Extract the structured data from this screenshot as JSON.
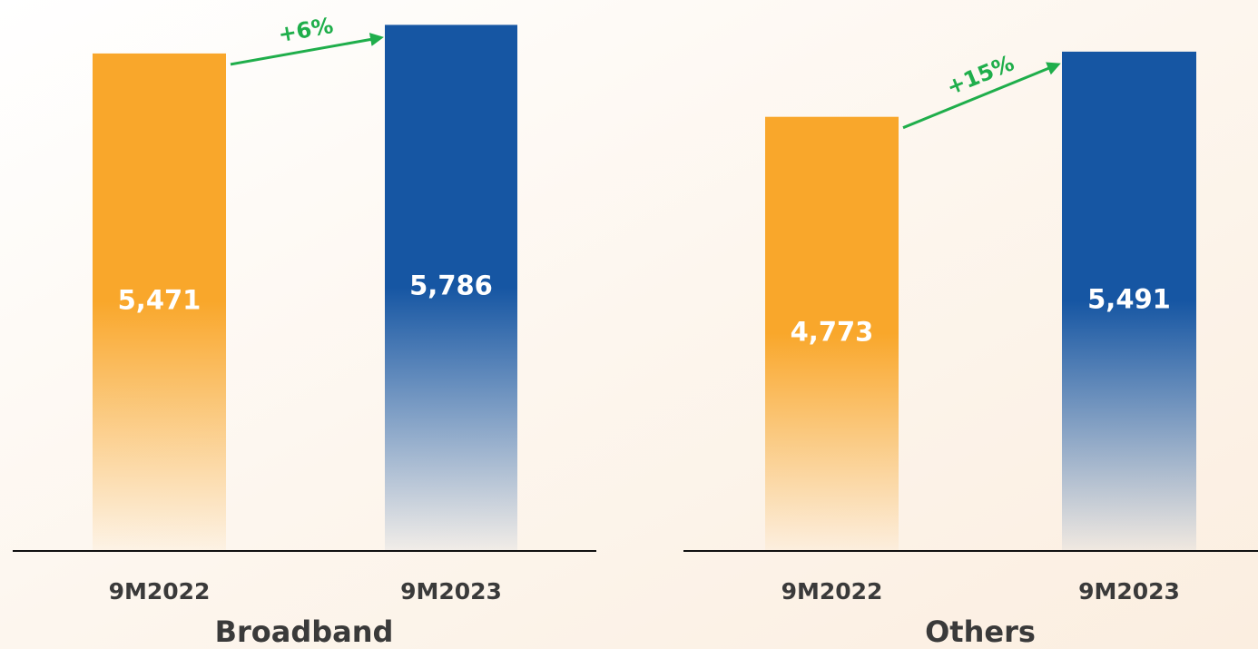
{
  "chart_data": [
    {
      "type": "bar",
      "title": "Broadband",
      "categories": [
        "9M2022",
        "9M2023"
      ],
      "values": [
        5471,
        5786
      ],
      "value_labels": [
        "5,471",
        "5,786"
      ],
      "colors": [
        "#F9A72B",
        "#1656A3"
      ],
      "annotation": "+6%"
    },
    {
      "type": "bar",
      "title": "Others",
      "categories": [
        "9M2022",
        "9M2023"
      ],
      "values": [
        4773,
        5491
      ],
      "value_labels": [
        "4,773",
        "5,491"
      ],
      "colors": [
        "#F9A72B",
        "#1656A3"
      ],
      "annotation": "+15%"
    }
  ]
}
